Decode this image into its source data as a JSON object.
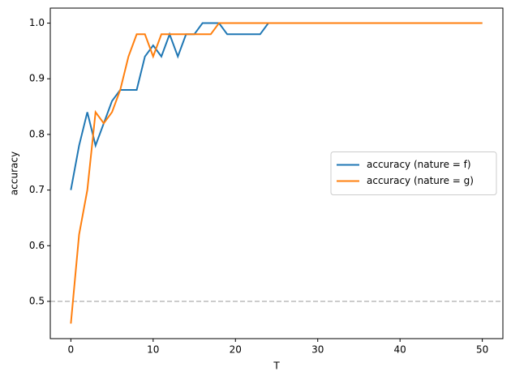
{
  "chart_data": {
    "type": "line",
    "x": [
      0,
      1,
      2,
      3,
      4,
      5,
      6,
      7,
      8,
      9,
      10,
      11,
      12,
      13,
      14,
      15,
      16,
      17,
      18,
      19,
      20,
      21,
      22,
      23,
      24,
      25,
      26,
      27,
      28,
      29,
      30,
      31,
      32,
      33,
      34,
      35,
      36,
      37,
      38,
      39,
      40,
      41,
      42,
      43,
      44,
      45,
      46,
      47,
      48,
      49,
      50
    ],
    "series": [
      {
        "name": "accuracy (nature = f)",
        "color": "#1f77b4",
        "values": [
          0.7,
          0.78,
          0.84,
          0.78,
          0.82,
          0.86,
          0.88,
          0.88,
          0.88,
          0.94,
          0.96,
          0.94,
          0.98,
          0.94,
          0.98,
          0.98,
          1,
          1,
          1,
          0.98,
          0.98,
          0.98,
          0.98,
          0.98,
          1,
          1,
          1,
          1,
          1,
          1,
          1,
          1,
          1,
          1,
          1,
          1,
          1,
          1,
          1,
          1,
          1,
          1,
          1,
          1,
          1,
          1,
          1,
          1,
          1,
          1,
          1
        ]
      },
      {
        "name": "accuracy (nature = g)",
        "color": "#ff7f0e",
        "values": [
          0.46,
          0.62,
          0.7,
          0.84,
          0.82,
          0.84,
          0.88,
          0.94,
          0.98,
          0.98,
          0.94,
          0.98,
          0.98,
          0.98,
          0.98,
          0.98,
          0.98,
          0.98,
          1,
          1,
          1,
          1,
          1,
          1,
          1,
          1,
          1,
          1,
          1,
          1,
          1,
          1,
          1,
          1,
          1,
          1,
          1,
          1,
          1,
          1,
          1,
          1,
          1,
          1,
          1,
          1,
          1,
          1,
          1,
          1,
          1
        ]
      }
    ],
    "xlabel": "T",
    "ylabel": "accuracy",
    "xlim": [
      -2.5,
      52.5
    ],
    "xticks": [
      0,
      10,
      20,
      30,
      40,
      50
    ],
    "ylim": [
      0.433,
      1.027
    ],
    "yticks": [
      0.5,
      0.6,
      0.7,
      0.8,
      0.9,
      {
        "value": 1,
        "label": "1.0"
      }
    ],
    "reference_line": 0.5,
    "reference_color": "#bbbbbb",
    "legend": "center right"
  }
}
